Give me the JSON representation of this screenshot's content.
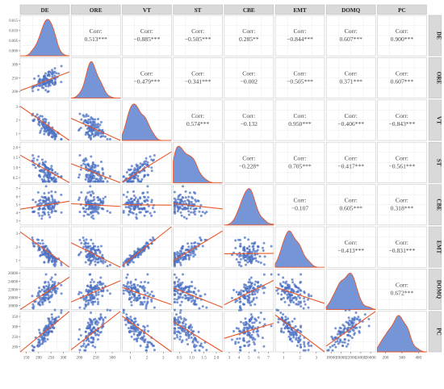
{
  "chart_data": {
    "type": "scatter-matrix",
    "variables": [
      "DE",
      "ORE",
      "VT",
      "ST",
      "CBE",
      "EMT",
      "DOMQ",
      "PC"
    ],
    "corr_label": "Corr:",
    "correlations": [
      [
        "",
        "0.513***",
        "−0.885***",
        "−0.505***",
        "0.285**",
        "−0.844***",
        "0.607***",
        "0.900***"
      ],
      [
        "",
        "",
        "−0.479***",
        "−0.341***",
        "−0.002",
        "−0.505***",
        "0.371***",
        "0.607***"
      ],
      [
        "",
        "",
        "",
        "0.574***",
        "−0.132",
        "0.950***",
        "−0.406***",
        "−0.843***"
      ],
      [
        "",
        "",
        "",
        "",
        "−0.228*",
        "0.705***",
        "−0.417***",
        "−0.561***"
      ],
      [
        "",
        "",
        "",
        "",
        "",
        "−0.107",
        "0.605***",
        "0.318***"
      ],
      [
        "",
        "",
        "",
        "",
        "",
        "",
        "−0.413***",
        "−0.831***"
      ],
      [
        "",
        "",
        "",
        "",
        "",
        "",
        "",
        "0.672***"
      ],
      [
        "",
        "",
        "",
        "",
        "",
        "",
        "",
        ""
      ]
    ],
    "x_tick_labels": [
      [
        "150",
        "200",
        "250",
        "300"
      ],
      [
        "200",
        "250",
        "300"
      ],
      [
        "1",
        "2",
        "3"
      ],
      [
        "0.5",
        "1.0",
        "1.5",
        "2.0"
      ],
      [
        "3",
        "4",
        "5",
        "6",
        "7"
      ],
      [
        "1",
        "2",
        "3"
      ],
      [
        "18000",
        "20000",
        "22000",
        "24000",
        "26000"
      ],
      [
        "200",
        "300",
        "400"
      ]
    ],
    "y_tick_labels": [
      [
        "0.000",
        "0.005",
        "0.010",
        "0.015"
      ],
      [
        "200",
        "250",
        "300"
      ],
      [
        "1",
        "2",
        "3"
      ],
      [
        "0.5",
        "1.0",
        "1.5",
        "2.0"
      ],
      [
        "3",
        "4",
        "5",
        "6",
        "7"
      ],
      [
        "1",
        "2",
        "3"
      ],
      [
        "18000",
        "20000",
        "22000",
        "24000",
        "26000"
      ],
      [
        "200",
        "250",
        "300",
        "350"
      ]
    ],
    "ranges": {
      "DE": [
        120,
        330
      ],
      "ORE": [
        180,
        350
      ],
      "VT": [
        0.4,
        3.5
      ],
      "ST": [
        0.1,
        2.2
      ],
      "CBE": [
        2.3,
        7.7
      ],
      "EMT": [
        0.4,
        3.5
      ],
      "DOMQ": [
        17500,
        26500
      ],
      "PC": [
        180,
        420
      ]
    },
    "pc_y_range": [
      180,
      370
    ],
    "density_y_range": [
      0,
      0.016
    ],
    "grid": true,
    "colors": {
      "point": "#4c72c4",
      "fit_line": "#e8562a",
      "density_fill": "#6f8fd4",
      "density_line": "#e8562a",
      "strip": "#d9d9d9",
      "panel_border": "#c8c8c8",
      "grid": "#ebebeb",
      "text": "#444444"
    }
  }
}
